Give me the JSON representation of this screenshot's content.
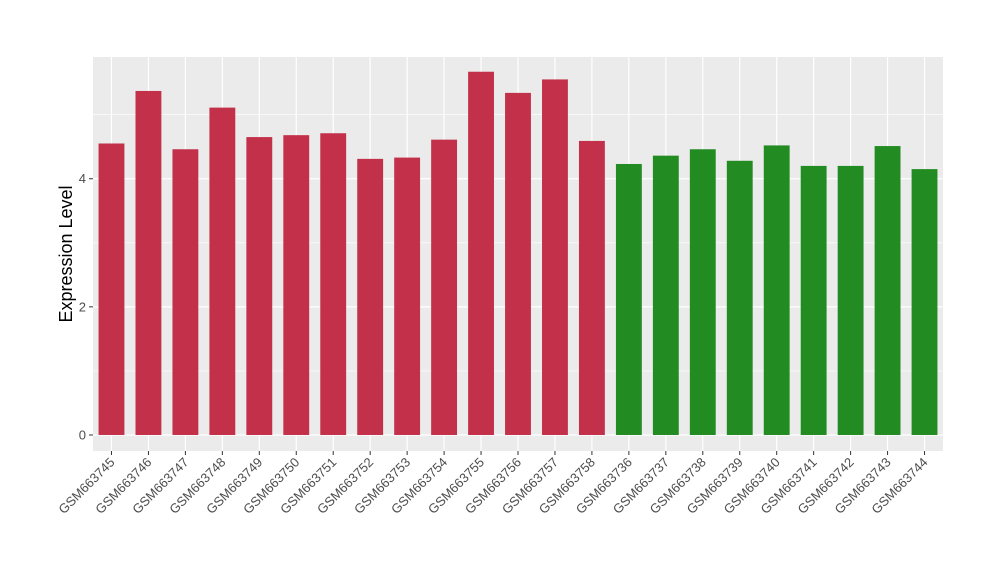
{
  "chart_data": {
    "type": "bar",
    "ylabel": "Expression Level",
    "xlabel": "",
    "ylim": [
      -0.25,
      5.9
    ],
    "yticks": [
      0,
      2,
      4
    ],
    "grid": true,
    "categories": [
      "GSM663745",
      "GSM663746",
      "GSM663747",
      "GSM663748",
      "GSM663749",
      "GSM663750",
      "GSM663751",
      "GSM663752",
      "GSM663753",
      "GSM663754",
      "GSM663755",
      "GSM663756",
      "GSM663757",
      "GSM663758",
      "GSM663736",
      "GSM663737",
      "GSM663738",
      "GSM663739",
      "GSM663740",
      "GSM663741",
      "GSM663742",
      "GSM663743",
      "GSM663744"
    ],
    "values": [
      4.55,
      5.37,
      4.46,
      5.11,
      4.65,
      4.68,
      4.71,
      4.31,
      4.33,
      4.61,
      5.67,
      5.34,
      5.55,
      4.59,
      4.23,
      4.36,
      4.46,
      4.28,
      4.52,
      4.2,
      4.2,
      4.51,
      4.15
    ],
    "colors": [
      "#c3304a",
      "#c3304a",
      "#c3304a",
      "#c3304a",
      "#c3304a",
      "#c3304a",
      "#c3304a",
      "#c3304a",
      "#c3304a",
      "#c3304a",
      "#c3304a",
      "#c3304a",
      "#c3304a",
      "#c3304a",
      "#228b22",
      "#228b22",
      "#228b22",
      "#228b22",
      "#228b22",
      "#228b22",
      "#228b22",
      "#228b22",
      "#228b22"
    ],
    "panel_background": "#ebebeb",
    "gridline_color": "#ffffff"
  }
}
